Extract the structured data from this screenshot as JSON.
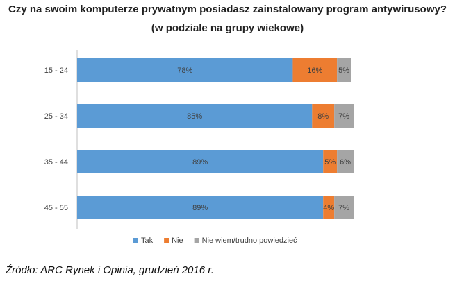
{
  "chart_data": {
    "type": "bar",
    "orientation": "horizontal",
    "stacked": true,
    "title": "Czy na swoim komputerze prywatnym posiadasz zainstalowany program antywirusowy?",
    "subtitle": "(w podziale na grupy wiekowe)",
    "categories": [
      "15 - 24",
      "25 - 34",
      "35 - 44",
      "45 - 55"
    ],
    "series": [
      {
        "name": "Tak",
        "color": "#5B9BD5",
        "values": [
          78,
          85,
          89,
          89
        ]
      },
      {
        "name": "Nie",
        "color": "#ED7D31",
        "values": [
          16,
          8,
          5,
          4
        ]
      },
      {
        "name": "Nie wiem/trudno powiedzieć",
        "color": "#A5A5A5",
        "values": [
          5,
          7,
          6,
          7
        ]
      }
    ],
    "xlim": [
      0,
      100
    ],
    "value_suffix": "%",
    "grid": false,
    "legend_position": "bottom"
  },
  "source": "Źródło: ARC Rynek i Opinia, grudzień 2016 r."
}
